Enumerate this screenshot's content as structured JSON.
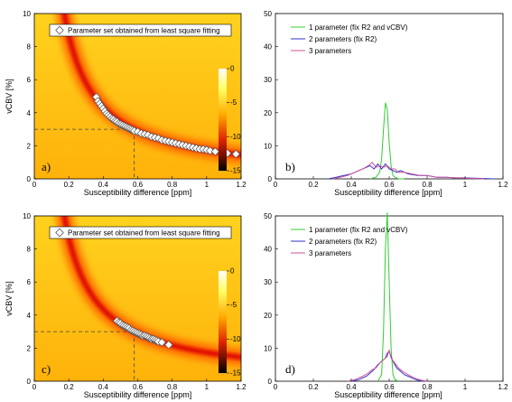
{
  "figure": {
    "panels": [
      {
        "id": "a",
        "panel_label": "a)",
        "legend": [
          "Parameter set obtained from least square fitting"
        ],
        "xlabel": "Susceptibility difference [ppm]",
        "ylabel": "vCBV [%]",
        "xticks": [
          "0",
          "0.2",
          "0.4",
          "0.6",
          "0.8",
          "1",
          "1.2"
        ],
        "yticks": [
          "0",
          "2",
          "4",
          "6",
          "8",
          "10"
        ],
        "colorbar_ticks": [
          "0",
          "-5",
          "-10",
          "-15"
        ]
      },
      {
        "id": "b",
        "panel_label": "b)",
        "legend": [
          "1 parameter (fix R2 and vCBV)",
          "2 parameters (fix R2)",
          "3 parameters"
        ],
        "xlabel": "Susceptibility difference [ppm]",
        "ylabel": "",
        "xticks": [
          "0",
          "0.2",
          "0.4",
          "0.6",
          "0.8",
          "1",
          "1.2"
        ],
        "yticks": [
          "0",
          "10",
          "20",
          "30",
          "40",
          "50"
        ]
      },
      {
        "id": "c",
        "panel_label": "c)",
        "legend": [
          "Parameter set obtained from least square fitting"
        ],
        "xlabel": "Susceptibility difference [ppm]",
        "ylabel": "vCBV [%]",
        "xticks": [
          "0",
          "0.2",
          "0.4",
          "0.6",
          "0.8",
          "1",
          "1.2"
        ],
        "yticks": [
          "0",
          "2",
          "4",
          "6",
          "8",
          "10"
        ],
        "colorbar_ticks": [
          "0",
          "-5",
          "-10",
          "-15"
        ]
      },
      {
        "id": "d",
        "panel_label": "d)",
        "legend": [
          "1 parameter (fix R2 and vCBV)",
          "2 parameters (fix R2)",
          "3 parameters"
        ],
        "xlabel": "Susceptibility difference [ppm]",
        "ylabel": "",
        "xticks": [
          "0",
          "0.2",
          "0.4",
          "0.6",
          "0.8",
          "1",
          "1.2"
        ],
        "yticks": [
          "0",
          "10",
          "20",
          "30",
          "40",
          "50"
        ]
      }
    ]
  },
  "colors": {
    "one_param": "#33cc33",
    "two_params": "#3333cc",
    "three_params": "#cc5599",
    "marker_fill": "#ffffff",
    "marker_stroke": "#555555"
  },
  "chart_data": [
    {
      "panel": "a",
      "type": "heatmap",
      "xlim": [
        0,
        1.2
      ],
      "ylim": [
        0,
        10
      ],
      "colorbar_range": [
        -15,
        0
      ],
      "reference": {
        "x": 0.58,
        "y": 3
      },
      "valley": {
        "constant": 1.74,
        "shape": "vCBV = c / susceptibility"
      },
      "markers": {
        "name": "Parameter set obtained from least square fitting",
        "x": [
          0.36,
          0.37,
          0.38,
          0.39,
          0.4,
          0.41,
          0.42,
          0.43,
          0.44,
          0.45,
          0.46,
          0.47,
          0.48,
          0.49,
          0.5,
          0.51,
          0.52,
          0.53,
          0.54,
          0.55,
          0.56,
          0.57,
          0.58,
          0.6,
          0.62,
          0.64,
          0.66,
          0.68,
          0.7,
          0.72,
          0.74,
          0.76,
          0.78,
          0.8,
          0.82,
          0.84,
          0.86,
          0.88,
          0.9,
          0.92,
          0.94,
          0.96,
          0.98,
          1.0,
          1.02,
          1.05,
          1.12,
          1.17
        ],
        "y": [
          4.95,
          4.7,
          4.55,
          4.4,
          4.25,
          4.1,
          3.95,
          3.85,
          3.75,
          3.65,
          3.6,
          3.5,
          3.45,
          3.35,
          3.3,
          3.25,
          3.2,
          3.15,
          3.1,
          3.05,
          3.0,
          2.95,
          2.9,
          2.85,
          2.75,
          2.7,
          2.65,
          2.55,
          2.5,
          2.45,
          2.35,
          2.3,
          2.25,
          2.2,
          2.15,
          2.1,
          2.05,
          2.0,
          1.95,
          1.9,
          1.85,
          1.8,
          1.8,
          1.75,
          1.7,
          1.65,
          1.55,
          1.5
        ]
      }
    },
    {
      "panel": "b",
      "type": "line",
      "xlim": [
        0,
        1.2
      ],
      "ylim": [
        0,
        50
      ],
      "series": [
        {
          "name": "1 parameter (fix R2 and vCBV)",
          "x": [
            0.5,
            0.53,
            0.55,
            0.56,
            0.57,
            0.58,
            0.59,
            0.6,
            0.61,
            0.62,
            0.63,
            0.65,
            0.68
          ],
          "y": [
            0,
            0.5,
            2,
            6,
            15,
            23,
            21,
            11,
            4,
            1,
            0.5,
            0,
            0
          ]
        },
        {
          "name": "2 parameters (fix R2)",
          "x": [
            0.28,
            0.32,
            0.36,
            0.4,
            0.44,
            0.48,
            0.5,
            0.52,
            0.54,
            0.56,
            0.58,
            0.6,
            0.62,
            0.64,
            0.66,
            0.7,
            0.75,
            0.8,
            0.85,
            0.9,
            0.95,
            1.0,
            1.05,
            1.1,
            1.15
          ],
          "y": [
            0,
            0.5,
            1,
            1.5,
            2.5,
            3.5,
            4,
            3,
            4.5,
            3,
            4.5,
            3,
            2.5,
            2,
            2.5,
            1.5,
            1,
            1,
            0.5,
            0.5,
            0.3,
            0.3,
            0.2,
            0.1,
            0
          ]
        },
        {
          "name": "3 parameters",
          "x": [
            0.3,
            0.34,
            0.38,
            0.42,
            0.46,
            0.49,
            0.51,
            0.53,
            0.55,
            0.57,
            0.59,
            0.61,
            0.63,
            0.65,
            0.68,
            0.72,
            0.76,
            0.8,
            0.85,
            0.9,
            0.95,
            1.0,
            1.05,
            1.1
          ],
          "y": [
            0,
            0.5,
            1,
            2,
            3,
            4,
            5,
            3.5,
            4,
            3.5,
            4,
            3,
            3,
            2,
            2,
            1.5,
            1,
            1,
            0.5,
            0.5,
            0.3,
            0.2,
            0.1,
            0
          ]
        }
      ]
    },
    {
      "panel": "c",
      "type": "heatmap",
      "xlim": [
        0,
        1.2
      ],
      "ylim": [
        0,
        10
      ],
      "colorbar_range": [
        -15,
        0
      ],
      "reference": {
        "x": 0.58,
        "y": 3
      },
      "valley": {
        "constant": 1.74,
        "shape": "vCBV = c / susceptibility"
      },
      "markers": {
        "name": "Parameter set obtained from least square fitting",
        "x": [
          0.48,
          0.49,
          0.5,
          0.51,
          0.52,
          0.53,
          0.54,
          0.55,
          0.56,
          0.57,
          0.58,
          0.59,
          0.6,
          0.61,
          0.62,
          0.63,
          0.64,
          0.65,
          0.66,
          0.67,
          0.68,
          0.69,
          0.7,
          0.71,
          0.72,
          0.74,
          0.78
        ],
        "y": [
          3.65,
          3.55,
          3.5,
          3.4,
          3.35,
          3.3,
          3.25,
          3.2,
          3.1,
          3.05,
          3.0,
          2.95,
          2.9,
          2.85,
          2.8,
          2.75,
          2.75,
          2.7,
          2.65,
          2.6,
          2.55,
          2.55,
          2.5,
          2.45,
          2.4,
          2.35,
          2.2
        ]
      }
    },
    {
      "panel": "d",
      "type": "line",
      "xlim": [
        0,
        1.2
      ],
      "ylim": [
        0,
        50
      ],
      "series": [
        {
          "name": "1 parameter (fix R2 and vCBV)",
          "x": [
            0.54,
            0.56,
            0.57,
            0.58,
            0.59,
            0.6,
            0.61,
            0.62,
            0.63,
            0.65
          ],
          "y": [
            0,
            2,
            15,
            40,
            51,
            30,
            10,
            2,
            0.5,
            0
          ]
        },
        {
          "name": "2 parameters (fix R2)",
          "x": [
            0.4,
            0.44,
            0.48,
            0.5,
            0.52,
            0.54,
            0.56,
            0.58,
            0.59,
            0.6,
            0.61,
            0.62,
            0.64,
            0.66,
            0.68,
            0.7,
            0.72,
            0.75,
            0.78
          ],
          "y": [
            0,
            0.5,
            1.5,
            2.5,
            3.5,
            5,
            6,
            7,
            8.5,
            9,
            7.5,
            6,
            4,
            3,
            2,
            1.5,
            1,
            0.3,
            0
          ]
        },
        {
          "name": "3 parameters",
          "x": [
            0.38,
            0.42,
            0.46,
            0.49,
            0.51,
            0.53,
            0.55,
            0.57,
            0.59,
            0.6,
            0.61,
            0.63,
            0.65,
            0.67,
            0.7,
            0.73,
            0.77,
            0.8
          ],
          "y": [
            0,
            0.5,
            1.5,
            2.5,
            3.5,
            4,
            5.5,
            6.5,
            7.5,
            9.5,
            7,
            5.5,
            4,
            3,
            2,
            1,
            0.3,
            0
          ]
        }
      ]
    }
  ]
}
